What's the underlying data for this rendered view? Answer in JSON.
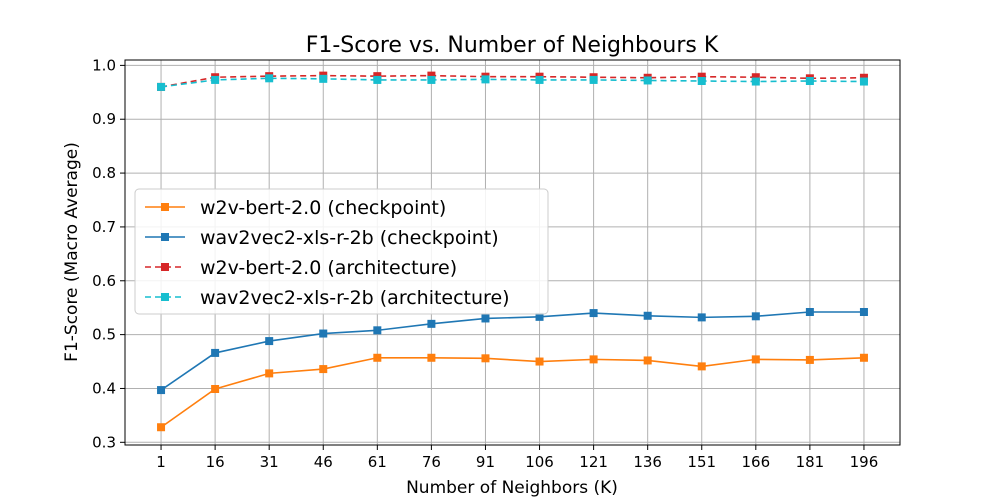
{
  "chart_data": {
    "type": "line",
    "title": "F1-Score vs. Number of Neighbours K",
    "xlabel": "Number of Neighbors (K)",
    "ylabel": "F1-Score (Macro Average)",
    "categories": [
      "1",
      "16",
      "31",
      "46",
      "61",
      "76",
      "91",
      "106",
      "121",
      "136",
      "151",
      "166",
      "181",
      "196"
    ],
    "x": [
      1,
      16,
      31,
      46,
      61,
      76,
      91,
      106,
      121,
      136,
      151,
      166,
      181,
      196
    ],
    "xlim": [
      -9,
      206
    ],
    "ylim": [
      0.295,
      1.01
    ],
    "yticks": [
      0.3,
      0.4,
      0.5,
      0.6,
      0.7,
      0.8,
      0.9,
      1.0
    ],
    "ytick_labels": [
      "0.3",
      "0.4",
      "0.5",
      "0.6",
      "0.7",
      "0.8",
      "0.9",
      "1.0"
    ],
    "grid": true,
    "legend_position": "center-left",
    "series": [
      {
        "name": "w2v-bert-2.0 (checkpoint)",
        "color": "#ff7f0e",
        "linestyle": "solid",
        "marker": "square",
        "values": [
          0.328,
          0.399,
          0.428,
          0.436,
          0.457,
          0.457,
          0.456,
          0.45,
          0.454,
          0.452,
          0.441,
          0.454,
          0.453,
          0.457
        ]
      },
      {
        "name": "wav2vec2-xls-r-2b (checkpoint)",
        "color": "#1f77b4",
        "linestyle": "solid",
        "marker": "square",
        "values": [
          0.397,
          0.466,
          0.488,
          0.502,
          0.508,
          0.52,
          0.53,
          0.533,
          0.54,
          0.535,
          0.532,
          0.534,
          0.542,
          0.542
        ]
      },
      {
        "name": "w2v-bert-2.0 (architecture)",
        "color": "#d62728",
        "linestyle": "dashed",
        "marker": "square",
        "values": [
          0.96,
          0.978,
          0.98,
          0.981,
          0.98,
          0.981,
          0.979,
          0.979,
          0.978,
          0.977,
          0.979,
          0.978,
          0.976,
          0.977
        ]
      },
      {
        "name": "wav2vec2-xls-r-2b (architecture)",
        "color": "#17becf",
        "linestyle": "dashed",
        "marker": "square",
        "values": [
          0.96,
          0.973,
          0.976,
          0.975,
          0.973,
          0.973,
          0.974,
          0.973,
          0.973,
          0.972,
          0.971,
          0.97,
          0.971,
          0.97
        ]
      }
    ]
  }
}
